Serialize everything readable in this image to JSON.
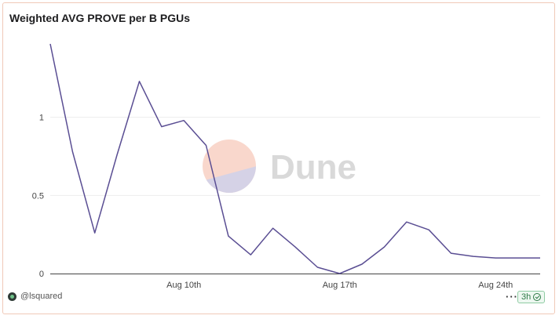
{
  "chart_data": {
    "type": "line",
    "title": "Weighted AVG PROVE per B PGUs",
    "xlabel": "",
    "ylabel": "",
    "x": [
      "2025-08-04",
      "2025-08-05",
      "2025-08-06",
      "2025-08-07",
      "2025-08-08",
      "2025-08-09",
      "2025-08-10",
      "2025-08-11",
      "2025-08-12",
      "2025-08-13",
      "2025-08-14",
      "2025-08-15",
      "2025-08-16",
      "2025-08-17",
      "2025-08-18",
      "2025-08-19",
      "2025-08-20",
      "2025-08-21",
      "2025-08-22",
      "2025-08-23",
      "2025-08-24",
      "2025-08-25",
      "2025-08-26"
    ],
    "series": [
      {
        "values": [
          1.47,
          0.78,
          0.26,
          0.76,
          1.23,
          0.94,
          0.98,
          0.82,
          0.24,
          0.12,
          0.29,
          0.17,
          0.04,
          0.0,
          0.06,
          0.17,
          0.33,
          0.28,
          0.13,
          0.11,
          0.1,
          0.1,
          0.1
        ],
        "color": "#5a4e93"
      }
    ],
    "x_ticks": [
      {
        "date": "2025-08-10",
        "label": "Aug 10th"
      },
      {
        "date": "2025-08-17",
        "label": "Aug 17th"
      },
      {
        "date": "2025-08-24",
        "label": "Aug 24th"
      }
    ],
    "y_ticks": [
      {
        "value": 0,
        "label": "0"
      },
      {
        "value": 0.5,
        "label": "0.5"
      },
      {
        "value": 1,
        "label": "1"
      }
    ],
    "ylim": [
      0,
      1.5
    ],
    "grid": true,
    "legend": "none"
  },
  "watermark": {
    "text": "Dune",
    "colors": {
      "top": "#f9d7cc",
      "bottom": "#d5d2e6",
      "text": "#d9d9d9"
    }
  },
  "footer": {
    "user": "@lsquared",
    "more": "···",
    "refresh": "3h"
  }
}
